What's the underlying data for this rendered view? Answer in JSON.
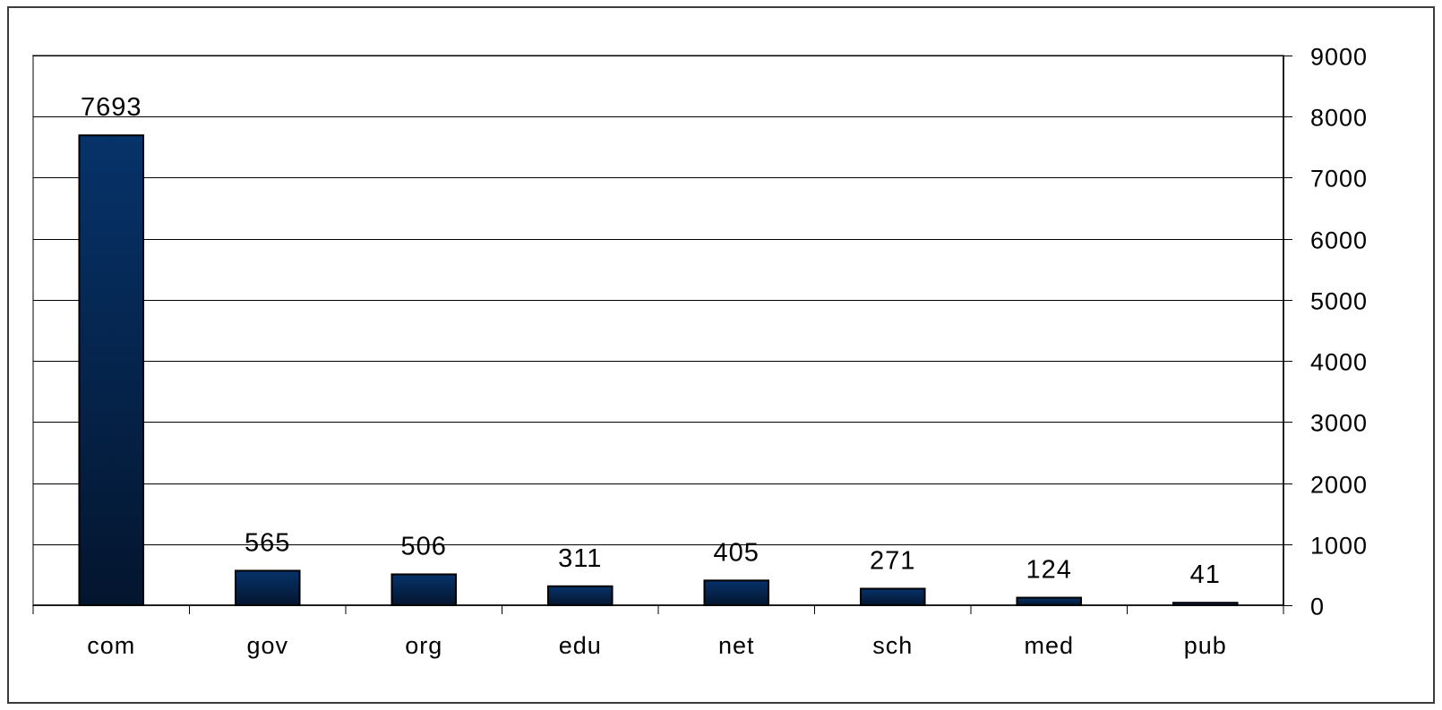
{
  "chart_data": {
    "type": "bar",
    "title": "",
    "xlabel": "",
    "ylabel": "",
    "categories": [
      "com",
      "gov",
      "org",
      "edu",
      "net",
      "sch",
      "med",
      "pub"
    ],
    "values": [
      7693,
      565,
      506,
      311,
      405,
      271,
      124,
      41
    ],
    "data_labels": [
      "7693",
      "565",
      "506",
      "311",
      "405",
      "271",
      "124",
      "41"
    ],
    "ylim": [
      0,
      9000
    ],
    "yticks": [
      0,
      1000,
      2000,
      3000,
      4000,
      5000,
      6000,
      7000,
      8000,
      9000
    ],
    "ytick_labels": [
      "0",
      "1000",
      "2000",
      "3000",
      "4000",
      "5000",
      "6000",
      "7000",
      "8000",
      "9000"
    ],
    "y_axis_side": "right",
    "grid": true,
    "legend": "none",
    "colors": {
      "bar_top": "#06336a",
      "bar_bottom": "#04152e",
      "bar_edge": "#000000",
      "grid": "#000000",
      "axis": "#000000",
      "plot_border": "#7f7f7f",
      "frame": "#3c3c3c"
    }
  }
}
